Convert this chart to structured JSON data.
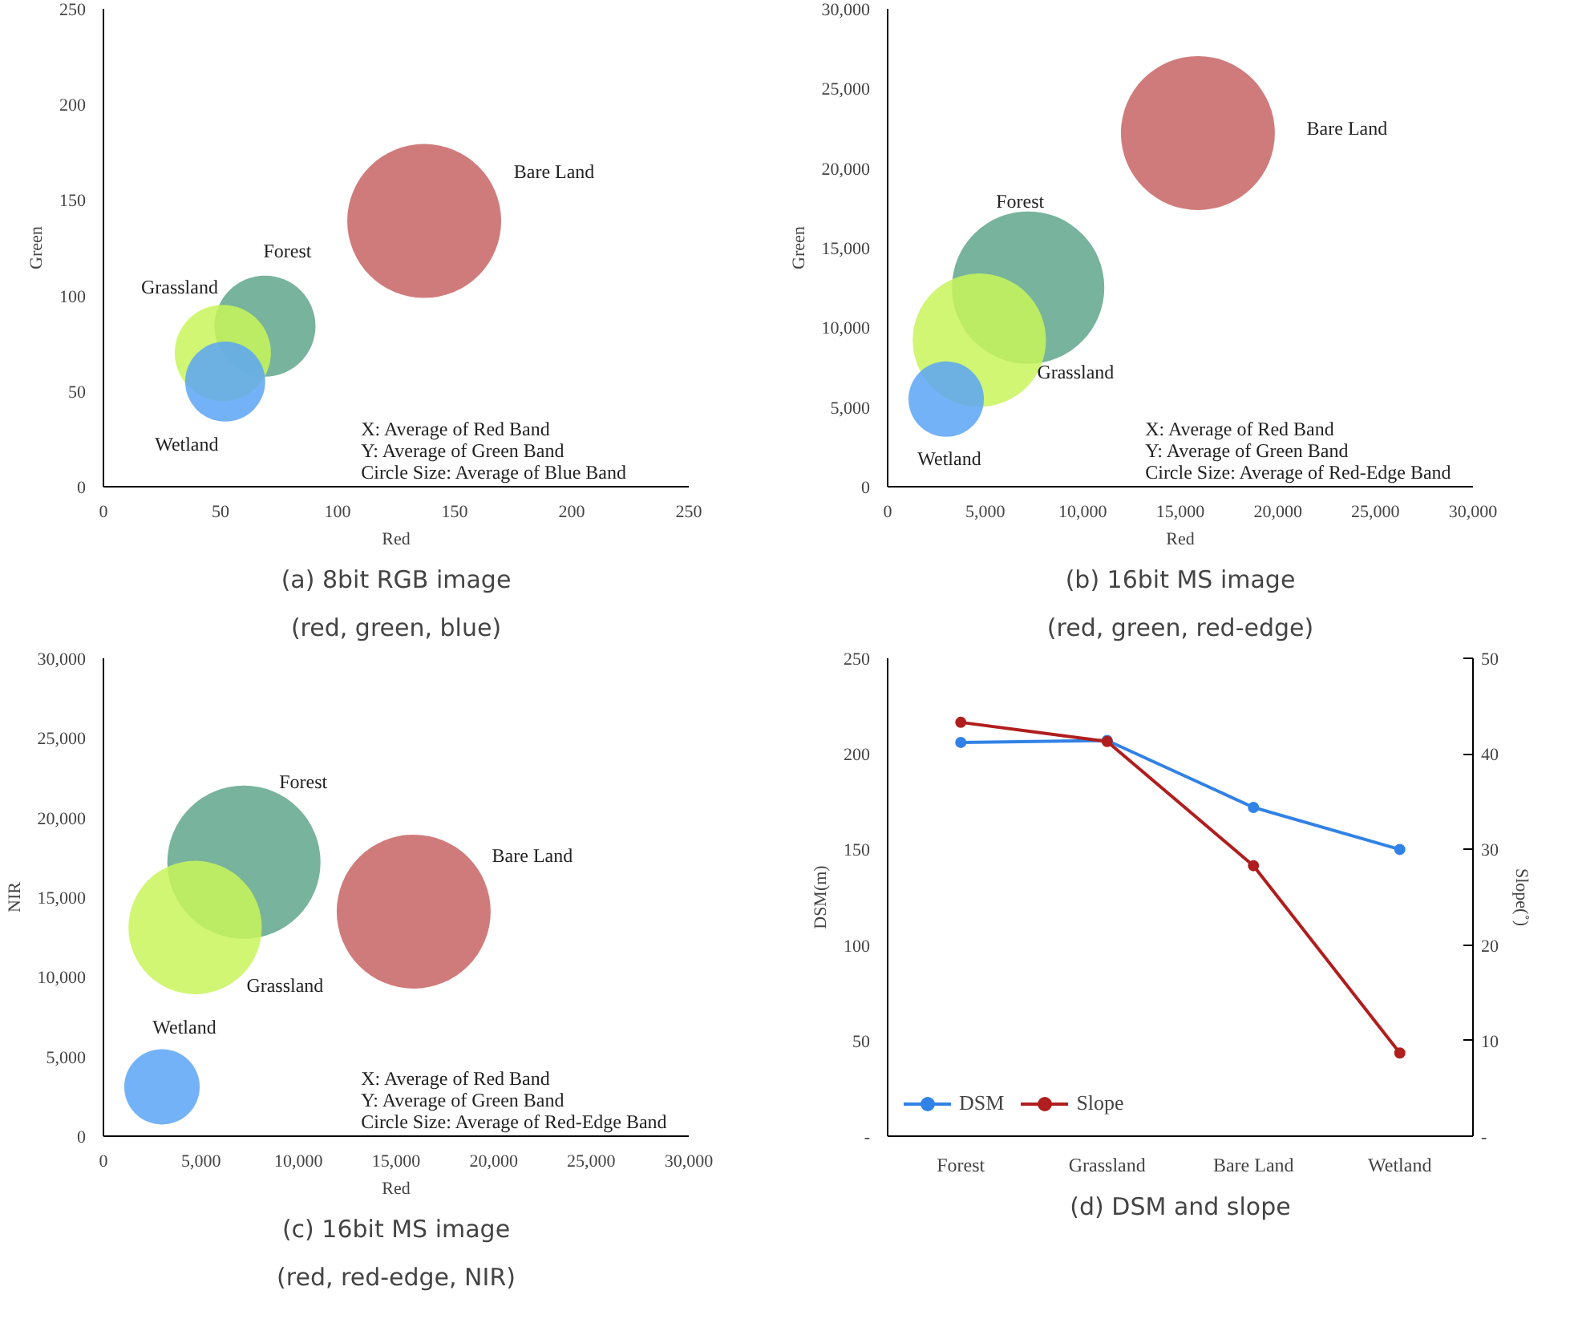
{
  "chart_data": [
    {
      "type": "bubble",
      "title": "(a) 8bit RGB image",
      "subtitle": "(red, green, blue)",
      "xlabel": "Red",
      "ylabel": "Green",
      "xlim": [
        0,
        250
      ],
      "ylim": [
        0,
        250
      ],
      "xticks": [
        0,
        50,
        100,
        150,
        200,
        250
      ],
      "yticks": [
        0,
        50,
        100,
        150,
        200,
        250
      ],
      "grid": false,
      "legend": false,
      "annotations": [
        "X: Average of Red Band",
        "Y: Average of Green Band",
        "Circle Size: Average of Blue Band"
      ],
      "series": [
        {
          "name": "Bare Land",
          "color": "#c86464",
          "x": [
            137
          ],
          "values": [
            139
          ],
          "sizes": [
            1
          ]
        },
        {
          "name": "Forest",
          "color": "#5fa68c",
          "x": [
            69
          ],
          "values": [
            84
          ],
          "sizes": [
            0.43
          ]
        },
        {
          "name": "Grassland",
          "color": "#c8f55a",
          "x": [
            51
          ],
          "values": [
            70
          ],
          "sizes": [
            0.39
          ]
        },
        {
          "name": "Wetland",
          "color": "#5aa5f5",
          "x": [
            52
          ],
          "values": [
            55
          ],
          "sizes": [
            0.27
          ]
        }
      ]
    },
    {
      "type": "bubble",
      "title": "(b) 16bit MS image",
      "subtitle": "(red, green, red-edge)",
      "xlabel": "Red",
      "ylabel": "Green",
      "xlim": [
        0,
        30000
      ],
      "ylim": [
        0,
        30000
      ],
      "xticks": [
        0,
        {
          "value": 5000,
          "label": "5,000"
        },
        {
          "value": 10000,
          "label": "10,000"
        },
        {
          "value": 15000,
          "label": "15,000"
        },
        {
          "value": 20000,
          "label": "20,000"
        },
        {
          "value": 25000,
          "label": "25,000"
        },
        {
          "value": 30000,
          "label": "30,000"
        }
      ],
      "yticks": [
        0,
        {
          "value": 5000,
          "label": "5,000"
        },
        {
          "value": 10000,
          "label": "10,000"
        },
        {
          "value": 15000,
          "label": "15,000"
        },
        {
          "value": 20000,
          "label": "20,000"
        },
        {
          "value": 25000,
          "label": "25,000"
        },
        {
          "value": 30000,
          "label": "30,000"
        }
      ],
      "grid": false,
      "legend": false,
      "annotations": [
        "X: Average of Red Band",
        "Y: Average of Green Band",
        "Circle Size: Average of Red-Edge Band"
      ],
      "series": [
        {
          "name": "Bare Land",
          "color": "#c86464",
          "x": [
            15900
          ],
          "values": [
            22200
          ],
          "sizes": [
            1
          ]
        },
        {
          "name": "Forest",
          "color": "#5fa68c",
          "x": [
            7200
          ],
          "values": [
            12500
          ],
          "sizes": [
            0.98
          ]
        },
        {
          "name": "Grassland",
          "color": "#c8f55a",
          "x": [
            4700
          ],
          "values": [
            9200
          ],
          "sizes": [
            0.75
          ]
        },
        {
          "name": "Wetland",
          "color": "#5aa5f5",
          "x": [
            3000
          ],
          "values": [
            5500
          ],
          "sizes": [
            0.24
          ]
        }
      ]
    },
    {
      "type": "bubble",
      "title": "(c) 16bit MS image",
      "subtitle": "(red, red-edge, NIR)",
      "xlabel": "Red",
      "ylabel": "NIR",
      "xlim": [
        0,
        30000
      ],
      "ylim": [
        0,
        30000
      ],
      "xticks": [
        0,
        {
          "value": 5000,
          "label": "5,000"
        },
        {
          "value": 10000,
          "label": "10,000"
        },
        {
          "value": 15000,
          "label": "15,000"
        },
        {
          "value": 20000,
          "label": "20,000"
        },
        {
          "value": 25000,
          "label": "25,000"
        },
        {
          "value": 30000,
          "label": "30,000"
        }
      ],
      "yticks": [
        0,
        {
          "value": 5000,
          "label": "5,000"
        },
        {
          "value": 10000,
          "label": "10,000"
        },
        {
          "value": 15000,
          "label": "15,000"
        },
        {
          "value": 20000,
          "label": "20,000"
        },
        {
          "value": 25000,
          "label": "25,000"
        },
        {
          "value": 30000,
          "label": "30,000"
        }
      ],
      "grid": false,
      "legend": false,
      "annotations": [
        "X: Average of Red Band",
        "Y: Average of Green Band",
        "Circle Size: Average of Red-Edge Band"
      ],
      "series": [
        {
          "name": "Bare Land",
          "color": "#c86464",
          "x": [
            15900
          ],
          "values": [
            14100
          ],
          "sizes": [
            1
          ]
        },
        {
          "name": "Forest",
          "color": "#5fa68c",
          "x": [
            7200
          ],
          "values": [
            17200
          ],
          "sizes": [
            0.99
          ]
        },
        {
          "name": "Grassland",
          "color": "#c8f55a",
          "x": [
            4700
          ],
          "values": [
            13100
          ],
          "sizes": [
            0.75
          ]
        },
        {
          "name": "Wetland",
          "color": "#5aa5f5",
          "x": [
            3000
          ],
          "values": [
            3100
          ],
          "sizes": [
            0.24
          ]
        }
      ]
    },
    {
      "type": "line",
      "title": "(d) DSM and slope",
      "ylabel": "DSM(m)",
      "y2label": "Slope(˚)",
      "categories": [
        "Forest",
        "Grassland",
        "Bare Land",
        "Wetland"
      ],
      "ylim": [
        0,
        250
      ],
      "yticks": [
        {
          "value": 0,
          "label": "-"
        },
        50,
        100,
        150,
        200,
        250
      ],
      "y2lim": [
        0,
        50
      ],
      "y2ticks": [
        {
          "value": 0,
          "label": "-"
        },
        10,
        20,
        30,
        40,
        50
      ],
      "grid": false,
      "legend": "bottom left",
      "marker": "circle",
      "series": [
        {
          "name": "DSM",
          "color": "#3182e6",
          "values": [
            206,
            207,
            172,
            150
          ]
        },
        {
          "name": "Slope",
          "color": "#b01e1e",
          "axis": "y2",
          "values": [
            43.3,
            41.3,
            28.3,
            8.7
          ]
        }
      ]
    }
  ]
}
